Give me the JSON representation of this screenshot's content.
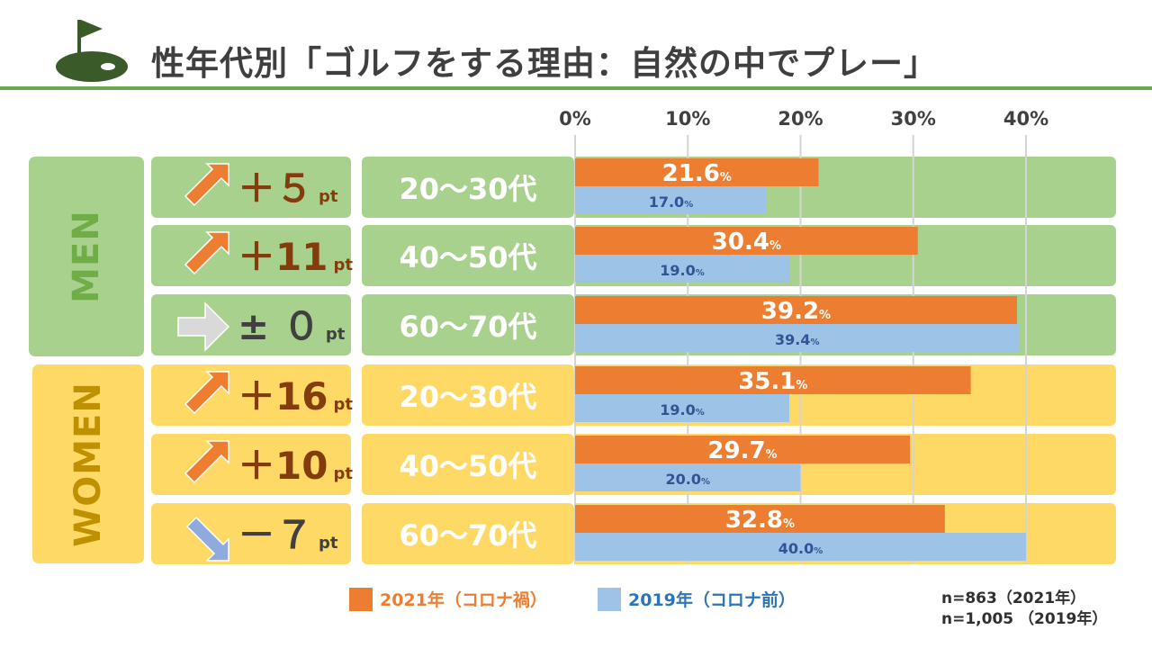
{
  "title": "性年代別「ゴルフをする理由：自然の中でプレー」",
  "colors": {
    "orange": "#ed7d31",
    "blue": "#9dc3e6",
    "men_bg": "#a9d18e",
    "women_bg": "#ffd966",
    "men_text": "#70ad47",
    "women_text": "#bf9000",
    "diff_text": "#843c0c",
    "title_line": "#6aa84f"
  },
  "groups": [
    {
      "label": "MEN",
      "icon": "golf-flag-icon"
    },
    {
      "label": "WOMEN"
    }
  ],
  "rows": [
    {
      "group": "MEN",
      "age": "20～30代",
      "arrow": "up-right",
      "diff": "＋５",
      "unit": "pt"
    },
    {
      "group": "MEN",
      "age": "40～50代",
      "arrow": "up-right",
      "diff": "＋11",
      "unit": "pt"
    },
    {
      "group": "MEN",
      "age": "60～70代",
      "arrow": "right",
      "diff": "± ０",
      "unit": "pt"
    },
    {
      "group": "WOMEN",
      "age": "20～30代",
      "arrow": "up-right",
      "diff": "＋16",
      "unit": "pt"
    },
    {
      "group": "WOMEN",
      "age": "40～50代",
      "arrow": "up-right",
      "diff": "＋10",
      "unit": "pt"
    },
    {
      "group": "WOMEN",
      "age": "60～70代",
      "arrow": "down-right",
      "diff": "－７",
      "unit": "pt"
    }
  ],
  "chart_data": {
    "type": "bar",
    "orientation": "horizontal",
    "categories": [
      "MEN 20～30代",
      "MEN 40～50代",
      "MEN 60～70代",
      "WOMEN 20～30代",
      "WOMEN 40～50代",
      "WOMEN 60～70代"
    ],
    "series": [
      {
        "name": "2021年（コロナ禍）",
        "values": [
          21.6,
          30.4,
          39.2,
          35.1,
          29.7,
          32.8
        ],
        "labels": [
          "21.6",
          "30.4",
          "39.2",
          "35.1",
          "29.7",
          "32.8"
        ],
        "color": "#ed7d31"
      },
      {
        "name": "2019年（コロナ前）",
        "values": [
          17.0,
          19.0,
          39.4,
          19.0,
          20.0,
          40.0
        ],
        "labels": [
          "17.0",
          "19.0",
          "39.4",
          "19.0",
          "20.0",
          "40.0"
        ],
        "color": "#9dc3e6"
      }
    ],
    "xlim": [
      0,
      40
    ],
    "ticks": [
      "0%",
      "10%",
      "20%",
      "30%",
      "40%"
    ],
    "value_suffix": "%",
    "grid": true,
    "legend_position": "bottom"
  },
  "notes": [
    "n=863（2021年）",
    "n=1,005 （2019年）"
  ]
}
